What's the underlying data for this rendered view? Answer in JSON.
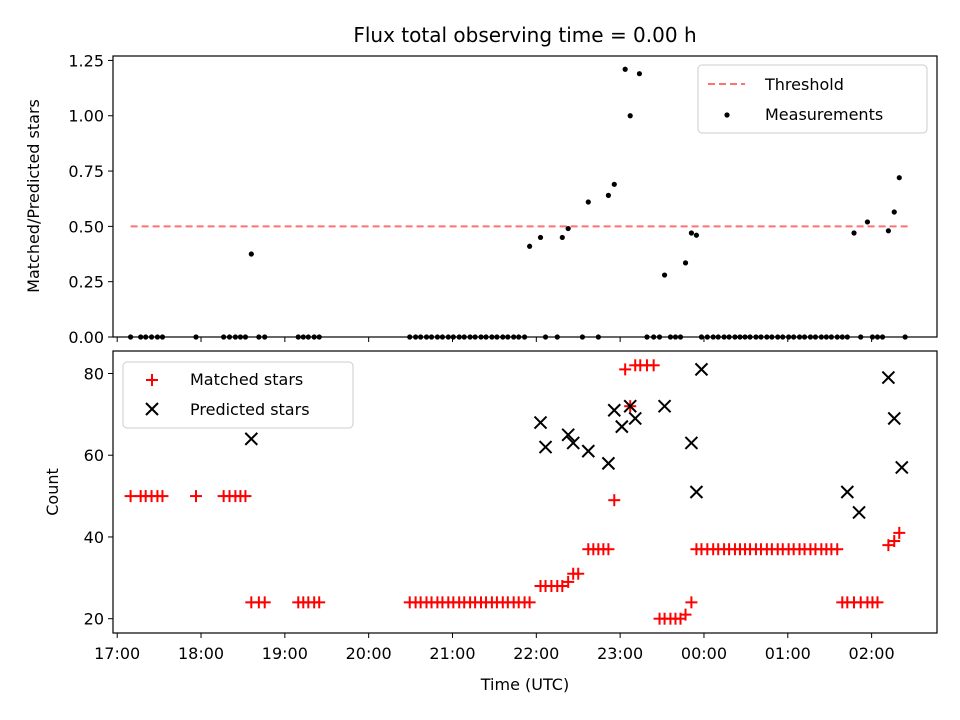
{
  "chart_data": [
    {
      "type": "scatter",
      "title": "Flux total observing time = 0.00 h",
      "xlabel": "",
      "ylabel": "Matched/Predicted stars",
      "ylim": [
        0,
        1.27
      ],
      "xlim_hours": [
        -0.05,
        9.78
      ],
      "x_unit": "hours since 17:00 UTC",
      "yticks": [
        "0.00",
        "0.25",
        "0.50",
        "0.75",
        "1.00",
        "1.25"
      ],
      "ytick_values": [
        0,
        0.25,
        0.5,
        0.75,
        1.0,
        1.25
      ],
      "legend": {
        "placement": "top-right",
        "entries": [
          "Threshold",
          "Measurements"
        ]
      },
      "threshold": {
        "name": "Threshold",
        "value": 0.5,
        "x_range": [
          0.16,
          9.43
        ],
        "color": "#ff7070"
      },
      "measurements": {
        "name": "Measurements",
        "color": "#000000",
        "x": [
          0.16,
          0.28,
          0.34,
          0.41,
          0.48,
          0.54,
          0.94,
          1.27,
          1.34,
          1.41,
          1.47,
          1.53,
          1.6,
          1.69,
          1.76,
          2.16,
          2.22,
          2.28,
          2.35,
          2.41,
          3.49,
          3.56,
          3.62,
          3.69,
          3.75,
          3.82,
          3.88,
          3.95,
          4.01,
          4.08,
          4.14,
          4.21,
          4.27,
          4.34,
          4.4,
          4.47,
          4.53,
          4.6,
          4.66,
          4.73,
          4.79,
          4.86,
          4.92,
          5.05,
          5.11,
          5.25,
          5.31,
          5.38,
          5.55,
          5.62,
          5.74,
          5.86,
          5.93,
          6.06,
          6.12,
          6.23,
          6.32,
          6.4,
          6.47,
          6.53,
          6.6,
          6.66,
          6.72,
          6.78,
          6.85,
          6.91,
          6.97,
          7.04,
          7.11,
          7.17,
          7.24,
          7.3,
          7.37,
          7.43,
          7.49,
          7.55,
          7.62,
          7.68,
          7.75,
          7.81,
          7.88,
          7.94,
          8.01,
          8.07,
          8.14,
          8.2,
          8.27,
          8.33,
          8.4,
          8.46,
          8.52,
          8.59,
          8.65,
          8.71,
          8.79,
          8.87,
          8.95,
          9.01,
          9.07,
          9.13,
          9.2,
          9.27,
          9.33,
          9.4
        ],
        "y": [
          0,
          0,
          0,
          0,
          0,
          0,
          0,
          0,
          0,
          0,
          0,
          0,
          0.375,
          0,
          0,
          0,
          0,
          0,
          0,
          0,
          0,
          0,
          0,
          0,
          0,
          0,
          0,
          0,
          0,
          0,
          0,
          0,
          0,
          0,
          0,
          0,
          0,
          0,
          0,
          0,
          0,
          0,
          0.41,
          0.45,
          0,
          0,
          0.45,
          0.49,
          0,
          0.61,
          0,
          0.64,
          0.69,
          1.21,
          1.0,
          1.19,
          0,
          0,
          0,
          0.28,
          0,
          0,
          0,
          0.335,
          0.47,
          0.46,
          0,
          0,
          0,
          0,
          0,
          0,
          0,
          0,
          0,
          0,
          0,
          0,
          0,
          0,
          0,
          0,
          0,
          0,
          0,
          0,
          0,
          0,
          0,
          0,
          0,
          0,
          0,
          0,
          0.47,
          0,
          0.52,
          0,
          0,
          0,
          0.48,
          0.565,
          0.72,
          0
        ]
      },
      "x_tick_labels": []
    },
    {
      "type": "scatter",
      "title": "",
      "xlabel": "Time (UTC)",
      "ylabel": "Count",
      "ylim": [
        16.5,
        85.5
      ],
      "xlim_hours": [
        -0.05,
        9.78
      ],
      "x_unit": "hours since 17:00 UTC",
      "yticks": [
        "20",
        "40",
        "60",
        "80"
      ],
      "ytick_values": [
        20,
        40,
        60,
        80
      ],
      "xticks": [
        "17:00",
        "18:00",
        "19:00",
        "20:00",
        "21:00",
        "22:00",
        "23:00",
        "00:00",
        "01:00",
        "02:00"
      ],
      "xtick_values": [
        0,
        1,
        2,
        3,
        4,
        5,
        6,
        7,
        8,
        9
      ],
      "legend": {
        "placement": "top-left",
        "entries": [
          "Matched stars",
          "Predicted stars"
        ]
      },
      "series": [
        {
          "name": "Matched stars",
          "marker": "plus",
          "color": "#ff0000",
          "x": [
            0.16,
            0.28,
            0.34,
            0.41,
            0.48,
            0.54,
            0.94,
            1.27,
            1.34,
            1.41,
            1.47,
            1.53,
            1.6,
            1.69,
            1.76,
            2.16,
            2.22,
            2.28,
            2.35,
            2.41,
            3.49,
            3.56,
            3.62,
            3.69,
            3.75,
            3.82,
            3.88,
            3.95,
            4.01,
            4.08,
            4.14,
            4.21,
            4.27,
            4.34,
            4.4,
            4.47,
            4.53,
            4.6,
            4.66,
            4.73,
            4.79,
            4.86,
            4.92,
            5.05,
            5.11,
            5.18,
            5.25,
            5.31,
            5.38,
            5.44,
            5.5,
            5.62,
            5.68,
            5.74,
            5.8,
            5.86,
            5.93,
            6.06,
            6.12,
            6.18,
            6.24,
            6.32,
            6.4,
            6.47,
            6.53,
            6.6,
            6.66,
            6.72,
            6.78,
            6.85,
            6.91,
            6.97,
            7.04,
            7.11,
            7.17,
            7.24,
            7.3,
            7.37,
            7.43,
            7.49,
            7.55,
            7.62,
            7.68,
            7.75,
            7.81,
            7.88,
            7.94,
            8.01,
            8.07,
            8.14,
            8.2,
            8.27,
            8.33,
            8.4,
            8.46,
            8.52,
            8.59,
            8.65,
            8.71,
            8.79,
            8.87,
            8.95,
            9.01,
            9.07,
            9.2,
            9.27,
            9.33
          ],
          "y": [
            50,
            50,
            50,
            50,
            50,
            50,
            50,
            50,
            50,
            50,
            50,
            50,
            24,
            24,
            24,
            24,
            24,
            24,
            24,
            24,
            24,
            24,
            24,
            24,
            24,
            24,
            24,
            24,
            24,
            24,
            24,
            24,
            24,
            24,
            24,
            24,
            24,
            24,
            24,
            24,
            24,
            24,
            24,
            28,
            28,
            28,
            28,
            28,
            29,
            31,
            31,
            37,
            37,
            37,
            37,
            37,
            49,
            81,
            72,
            82,
            82,
            82,
            82,
            20,
            20,
            20,
            20,
            20,
            21,
            24,
            37,
            37,
            37,
            37,
            37,
            37,
            37,
            37,
            37,
            37,
            37,
            37,
            37,
            37,
            37,
            37,
            37,
            37,
            37,
            37,
            37,
            37,
            37,
            37,
            37,
            37,
            37,
            24,
            24,
            24,
            24,
            24,
            24,
            24,
            38,
            39,
            41
          ]
        },
        {
          "name": "Predicted stars",
          "marker": "x",
          "color": "#000000",
          "x": [
            1.6,
            5.05,
            5.11,
            5.38,
            5.44,
            5.62,
            5.86,
            5.93,
            6.02,
            6.12,
            6.18,
            6.53,
            6.85,
            6.91,
            6.97,
            8.71,
            8.85,
            9.2,
            9.27,
            9.36
          ],
          "y": [
            64,
            68,
            62,
            65,
            63,
            61,
            58,
            71,
            67,
            72,
            69,
            72,
            63,
            51,
            81,
            51,
            46,
            79,
            69,
            57
          ]
        }
      ]
    }
  ]
}
